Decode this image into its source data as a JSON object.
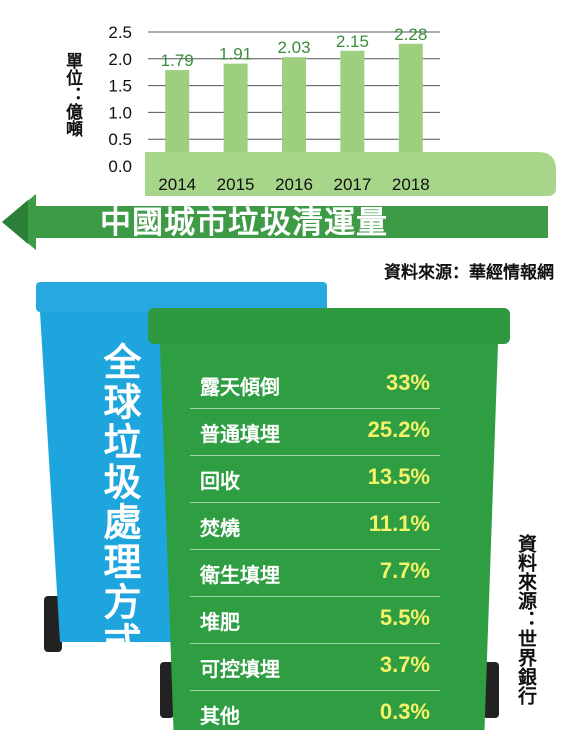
{
  "chart_data": [
    {
      "type": "bar",
      "title": "中國城市垃圾清運量",
      "ylabel": "單位：億噸",
      "categories": [
        "2014",
        "2015",
        "2016",
        "2017",
        "2018"
      ],
      "values": [
        1.79,
        1.91,
        2.03,
        2.15,
        2.28
      ],
      "value_labels": [
        "1.79",
        "1.91",
        "2.03",
        "2.15",
        "2.28"
      ],
      "ylim": [
        0,
        2.5
      ],
      "yticks": [
        "0.0",
        "0.5",
        "1.0",
        "1.5",
        "2.0",
        "2.5"
      ],
      "grid": true,
      "colors": {
        "bar": "#9dcf7e",
        "grid": "#555555",
        "label": "#3a8c3a"
      },
      "source": "資料來源：華經情報網"
    },
    {
      "type": "table",
      "title": "全球垃圾處理方式",
      "rows": [
        {
          "label": "露天傾倒",
          "value": "33%"
        },
        {
          "label": "普通填埋",
          "value": "25.2%"
        },
        {
          "label": "回收",
          "value": "13.5%"
        },
        {
          "label": "焚燒",
          "value": "11.1%"
        },
        {
          "label": "衛生填埋",
          "value": "7.7%"
        },
        {
          "label": "堆肥",
          "value": "5.5%"
        },
        {
          "label": "可控填埋",
          "value": "3.7%"
        },
        {
          "label": "其他",
          "value": "0.3%"
        }
      ],
      "source": "資料來源：世界銀行"
    }
  ],
  "colors": {
    "banner": "#3d9a45",
    "banner_light": "#8fcf6c",
    "blue_bin": "#1ea5dd",
    "green_bin": "#2f9e43",
    "value_yellow": "#f4f26a"
  }
}
